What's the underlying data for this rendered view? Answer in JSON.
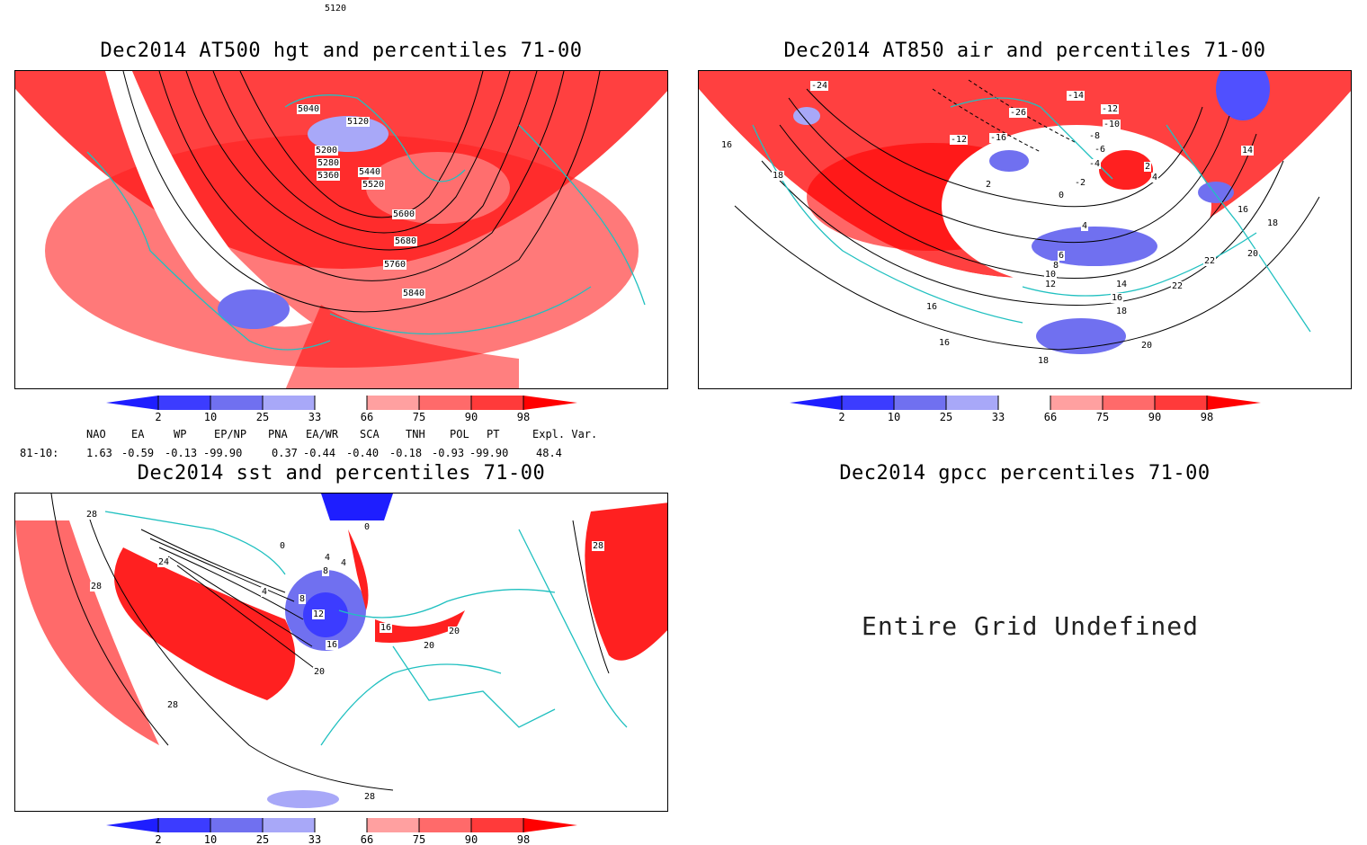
{
  "panels": {
    "hgt": {
      "title": "Dec2014 AT500 hgt and percentiles 71-00",
      "contour_labels": [
        "5120",
        "5040",
        "5120",
        "5200",
        "5280",
        "5360",
        "5440",
        "5520",
        "5600",
        "5680",
        "5760",
        "5840"
      ]
    },
    "air": {
      "title": "Dec2014 AT850 air and percentiles 71-00",
      "contour_labels": [
        "-24",
        "-26",
        "-14",
        "-12",
        "-10",
        "-8",
        "-6",
        "-4",
        "-12",
        "-16",
        "2",
        "0",
        "-2",
        "2",
        "4",
        "16",
        "18",
        "14",
        "16",
        "18",
        "4",
        "6",
        "8",
        "10",
        "12",
        "14",
        "16",
        "18",
        "20",
        "22",
        "22",
        "20",
        "16",
        "16",
        "18"
      ]
    },
    "sst": {
      "title": "Dec2014 sst and percentiles 71-00",
      "contour_labels": [
        "28",
        "24",
        "28",
        "0",
        "0",
        "4",
        "4",
        "8",
        "4",
        "8",
        "12",
        "16",
        "20",
        "16",
        "20",
        "20",
        "28",
        "28",
        "28"
      ]
    },
    "gpcc": {
      "title": "Dec2014 gpcc percentiles 71-00",
      "message": "Entire Grid Undefined"
    }
  },
  "colorbar": {
    "ticks": [
      "2",
      "10",
      "25",
      "33",
      "66",
      "75",
      "90",
      "98"
    ],
    "colors": [
      "#1e1eff",
      "#3c3cff",
      "#7070f0",
      "#a8a8f8",
      "#ffffff",
      "#ffa0a0",
      "#ff6a6a",
      "#ff3a3a",
      "#ff0000"
    ]
  },
  "teleconnections": {
    "headers": [
      "NAO",
      "EA",
      "WP",
      "EP/NP",
      "PNA",
      "EA/WR",
      "SCA",
      "TNH",
      "POL",
      "PT",
      "Expl. Var."
    ],
    "period": "81-10:",
    "values": [
      "1.63",
      "-0.59",
      "-0.13",
      "-99.90",
      "0.37",
      "-0.44",
      "-0.40",
      "-0.18",
      "-0.93",
      "-99.90",
      "48.4"
    ]
  },
  "colors": {
    "red_dark": "#ff0000",
    "red_mid": "#ff4040",
    "red_light": "#ff8a8a",
    "blue": "#5050ff",
    "coast": "#20c0c0"
  }
}
